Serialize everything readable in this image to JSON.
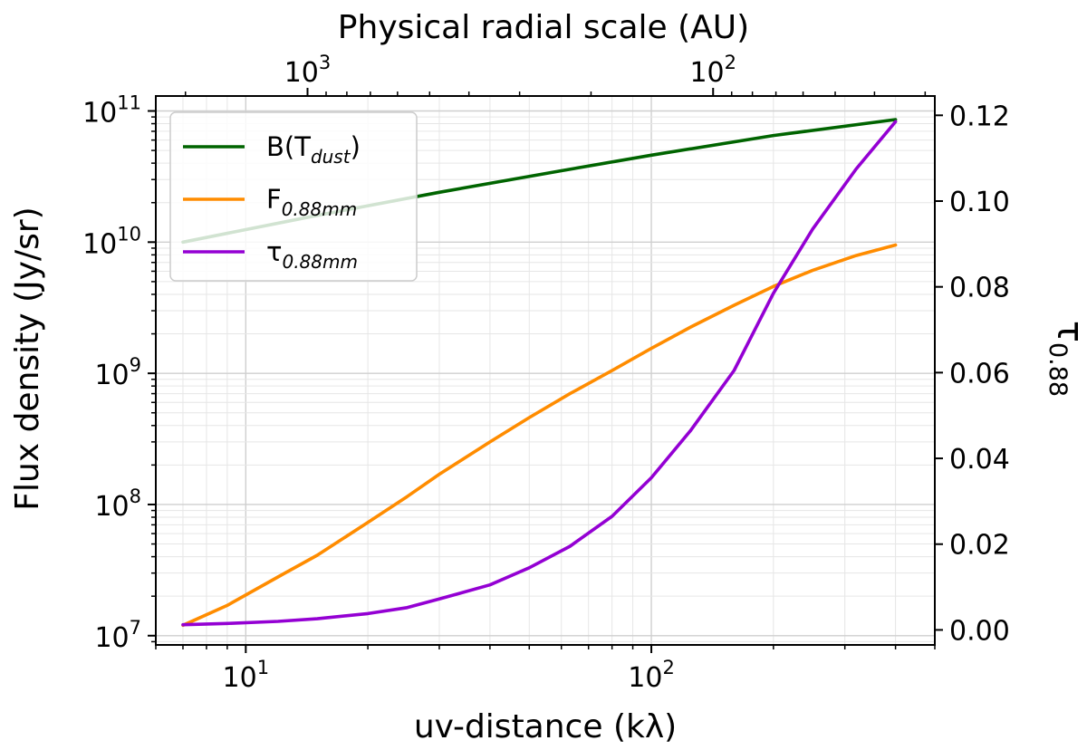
{
  "chart_data": {
    "type": "line",
    "top_xlabel": "Physical radial scale (AU)",
    "top_tick_labels": [
      {
        "value": 1000,
        "base": "10",
        "exp": "3"
      },
      {
        "value": 100,
        "base": "10",
        "exp": "2"
      }
    ],
    "xlabel": "uv-distance (kλ)",
    "ylabel": "Flux density (Jy/sr)",
    "y2label_main": "τ",
    "y2label_sub": "0.88",
    "xscale": "log",
    "yscale": "log",
    "xlim": [
      6.0,
      500
    ],
    "ylim": [
      8500000.0,
      130000000000.0
    ],
    "y2lim": [
      -0.0035,
      0.1245
    ],
    "x_ticks": [
      {
        "value": 10,
        "base": "10",
        "exp": "1"
      },
      {
        "value": 100,
        "base": "10",
        "exp": "2"
      }
    ],
    "y_ticks": [
      {
        "value": 10000000.0,
        "base": "10",
        "exp": "7"
      },
      {
        "value": 100000000.0,
        "base": "10",
        "exp": "8"
      },
      {
        "value": 1000000000.0,
        "base": "10",
        "exp": "9"
      },
      {
        "value": 10000000000.0,
        "base": "10",
        "exp": "10"
      },
      {
        "value": 100000000000.0,
        "base": "10",
        "exp": "11"
      }
    ],
    "y2_ticks": [
      "0.00",
      "0.02",
      "0.04",
      "0.06",
      "0.08",
      "0.10",
      "0.12"
    ],
    "grid": true,
    "legend_position": "top-left",
    "series": [
      {
        "name_main": "B(T",
        "name_sub": "dust",
        "name_tail": ")",
        "axis": "left",
        "color": "#006400",
        "x": [
          7,
          15,
          30,
          60,
          100,
          200,
          400
        ],
        "y": [
          10000000000.0,
          16000000000.0,
          24000000000.0,
          35000000000.0,
          46000000000.0,
          65000000000.0,
          86000000000.0
        ]
      },
      {
        "name_main": "F",
        "name_sub": "0.88mm",
        "name_tail": "",
        "axis": "left",
        "color": "#ff8c00",
        "x": [
          7,
          9,
          12,
          15,
          20,
          25,
          30,
          40,
          50,
          63,
          80,
          100,
          125,
          160,
          200,
          250,
          320,
          400
        ],
        "y": [
          12000000.0,
          17000000.0,
          28000000.0,
          41000000.0,
          73000000.0,
          115000000.0,
          170000000.0,
          300000000.0,
          460000000.0,
          700000000.0,
          1050000000.0,
          1550000000.0,
          2250000000.0,
          3300000000.0,
          4600000000.0,
          6100000000.0,
          7900000000.0,
          9500000000.0
        ]
      },
      {
        "name_main": "τ",
        "name_sub": "0.88mm",
        "name_tail": "",
        "axis": "right",
        "color": "#9400d3",
        "x": [
          7,
          9,
          12,
          15,
          20,
          25,
          30,
          40,
          50,
          63,
          80,
          100,
          125,
          160,
          200,
          250,
          320,
          400
        ],
        "y": [
          0.0012,
          0.0015,
          0.002,
          0.0026,
          0.0038,
          0.0052,
          0.0072,
          0.0105,
          0.0145,
          0.0195,
          0.0265,
          0.0355,
          0.0465,
          0.0605,
          0.0785,
          0.0935,
          0.1075,
          0.1185
        ]
      }
    ]
  }
}
